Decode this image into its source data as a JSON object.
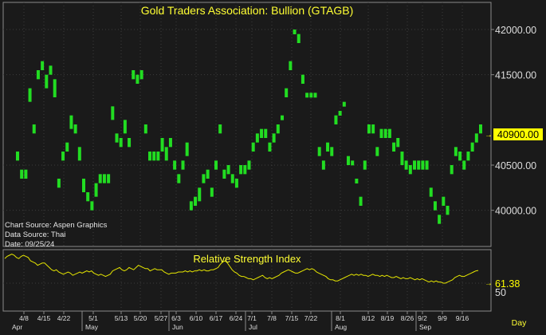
{
  "colors": {
    "background": "#1a1a1a",
    "panel_border": "#8a8a8a",
    "grid": "#3c3c3c",
    "bar": "#22dd22",
    "rsi_line": "#e6e600",
    "title_text": "#ffff33",
    "price_axis_text": "#dddddd",
    "price_tag_bg": "#ffff00",
    "price_tag_text": "#000000",
    "source_text": "#e6e6e6"
  },
  "price_panel": {
    "title": "Gold Traders Association: Bullion (GTAGB)",
    "last_price_label": "40900.00",
    "source_lines": [
      "Chart Source: Aspen Graphics",
      "Data Source: Thai",
      "Date: 09/25/24"
    ]
  },
  "rsi_panel": {
    "title": "Relative Strength Index",
    "last_value_label": "61.38",
    "level_label": "50"
  },
  "x_axis": {
    "day_ticks": [
      "4/8",
      "4/15",
      "4/22",
      "5/1",
      "5/13",
      "5/20",
      "5/27",
      "6/3",
      "6/10",
      "6/17",
      "6/24",
      "7/1",
      "7/8",
      "7/15",
      "7/22",
      "8/1",
      "8/12",
      "8/19",
      "8/26",
      "9/2",
      "9/9",
      "9/16"
    ],
    "month_labels": [
      "Apr",
      "May",
      "Jun",
      "Jul",
      "Aug",
      "Sep"
    ],
    "period_label": "Day"
  },
  "chart_data": [
    {
      "type": "bar",
      "title": "Gold Traders Association: Bullion (GTAGB)",
      "xlabel": "",
      "ylabel": "",
      "ylim": [
        39600,
        42300
      ],
      "yticks": [
        40000,
        40500,
        40900,
        41500,
        42000
      ],
      "ytick_labels": [
        "40000.00",
        "40500.00",
        "40900.00",
        "41500.00",
        "42000.00"
      ],
      "grid": true,
      "bar_style": "high-low range bars",
      "last_value": 40900.0,
      "series": [
        {
          "values": [
            [
              40550,
              40650
            ],
            [
              40350,
              40450
            ],
            [
              40350,
              40450
            ],
            [
              41200,
              41350
            ],
            [
              40850,
              40950
            ],
            [
              41450,
              41550
            ],
            [
              41550,
              41650
            ],
            [
              41350,
              41500
            ],
            [
              41500,
              41600
            ],
            [
              41250,
              41450
            ],
            [
              40250,
              40350
            ],
            [
              40550,
              40650
            ],
            [
              40650,
              40750
            ],
            [
              40900,
              41050
            ],
            [
              40850,
              40950
            ],
            [
              40550,
              40700
            ],
            [
              40200,
              40350
            ],
            [
              40100,
              40200
            ],
            [
              40000,
              40100
            ],
            [
              40150,
              40300
            ],
            [
              40300,
              40400
            ],
            [
              40300,
              40400
            ],
            [
              40300,
              40400
            ],
            [
              41000,
              41150
            ],
            [
              40750,
              40850
            ],
            [
              40700,
              40800
            ],
            [
              40850,
              41000
            ],
            [
              40700,
              40800
            ],
            [
              41450,
              41550
            ],
            [
              41400,
              41500
            ],
            [
              41450,
              41550
            ],
            [
              40850,
              40950
            ],
            [
              40550,
              40650
            ],
            [
              40550,
              40650
            ],
            [
              40550,
              40650
            ],
            [
              40650,
              40800
            ],
            [
              40550,
              40700
            ],
            [
              40700,
              40800
            ],
            [
              40450,
              40550
            ],
            [
              40300,
              40400
            ],
            [
              40450,
              40550
            ],
            [
              40600,
              40750
            ],
            [
              40000,
              40100
            ],
            [
              40050,
              40150
            ],
            [
              40100,
              40250
            ],
            [
              40300,
              40400
            ],
            [
              40350,
              40450
            ],
            [
              40150,
              40250
            ],
            [
              40450,
              40550
            ],
            [
              40850,
              40950
            ],
            [
              40350,
              40450
            ],
            [
              40400,
              40500
            ],
            [
              40300,
              40400
            ],
            [
              40250,
              40350
            ],
            [
              40400,
              40500
            ],
            [
              40400,
              40500
            ],
            [
              40450,
              40550
            ],
            [
              40650,
              40750
            ],
            [
              40750,
              40850
            ],
            [
              40800,
              40900
            ],
            [
              40800,
              40900
            ],
            [
              40650,
              40750
            ],
            [
              40750,
              40850
            ],
            [
              40850,
              40950
            ],
            [
              41000,
              41050
            ],
            [
              41250,
              41350
            ],
            [
              41550,
              41650
            ],
            [
              41950,
              42000
            ],
            [
              41850,
              41950
            ],
            [
              41400,
              41500
            ],
            [
              41250,
              41300
            ],
            [
              41250,
              41300
            ],
            [
              41250,
              41300
            ],
            [
              40600,
              40700
            ],
            [
              40450,
              40550
            ],
            [
              40650,
              40750
            ],
            [
              40600,
              40700
            ],
            [
              40950,
              41050
            ],
            [
              41050,
              41100
            ],
            [
              41150,
              41200
            ],
            [
              40500,
              40600
            ],
            [
              40500,
              40550
            ],
            [
              40300,
              40350
            ],
            [
              40050,
              40150
            ],
            [
              40450,
              40550
            ],
            [
              40850,
              40950
            ],
            [
              40850,
              40950
            ],
            [
              40600,
              40700
            ],
            [
              40800,
              40900
            ],
            [
              40800,
              40900
            ],
            [
              40800,
              40900
            ],
            [
              40650,
              40750
            ],
            [
              40700,
              40800
            ],
            [
              40500,
              40650
            ],
            [
              40450,
              40550
            ],
            [
              40400,
              40500
            ],
            [
              40450,
              40550
            ],
            [
              40450,
              40550
            ],
            [
              40450,
              40550
            ],
            [
              40450,
              40550
            ],
            [
              40150,
              40250
            ],
            [
              40000,
              40100
            ],
            [
              39850,
              39950
            ],
            [
              40050,
              40150
            ],
            [
              39950,
              40050
            ],
            [
              40400,
              40500
            ],
            [
              40600,
              40700
            ],
            [
              40550,
              40650
            ],
            [
              40450,
              40550
            ],
            [
              40550,
              40650
            ],
            [
              40650,
              40750
            ],
            [
              40750,
              40850
            ],
            [
              40850,
              40950
            ]
          ]
        }
      ]
    },
    {
      "type": "line",
      "title": "Relative Strength Index",
      "xlabel": "",
      "ylabel": "",
      "ylim": [
        25,
        80
      ],
      "yticks": [
        50
      ],
      "ytick_labels": [
        "50"
      ],
      "grid": true,
      "last_value": 61.38,
      "series": [
        {
          "name": "Relative Strength Index",
          "values": [
            72,
            74,
            75,
            76,
            75,
            73,
            72,
            74,
            75,
            74,
            73,
            70,
            69,
            68,
            66,
            67,
            68,
            68,
            66,
            64,
            62,
            61,
            62,
            60,
            59,
            58,
            59,
            60,
            59,
            57,
            58,
            59,
            60,
            59,
            60,
            61,
            60,
            61,
            59,
            58,
            57,
            58,
            57,
            56,
            57,
            58,
            61,
            62,
            63,
            64,
            62,
            61,
            62,
            64,
            63,
            62,
            64,
            66,
            65,
            64,
            63,
            63,
            61,
            62,
            63,
            62,
            62,
            62,
            60,
            59,
            58,
            59,
            59,
            59,
            60,
            60,
            60,
            61,
            60,
            61,
            60,
            61,
            61,
            62,
            61,
            62,
            61,
            61,
            62,
            62,
            63,
            64,
            67,
            69,
            70,
            68,
            65,
            62,
            60,
            59,
            57,
            56,
            56,
            55,
            54,
            54,
            53,
            54,
            55,
            56,
            57,
            55,
            54,
            55,
            54,
            55,
            56,
            57,
            59,
            60,
            61,
            62,
            61,
            60,
            59,
            59,
            60,
            61,
            62,
            63,
            62,
            63,
            62,
            60,
            59,
            58,
            57,
            56,
            54,
            53,
            53,
            52,
            52,
            53,
            54,
            55,
            56,
            57,
            58,
            57,
            58,
            57,
            58,
            57,
            57,
            56,
            57,
            58,
            57,
            57,
            56,
            57,
            56,
            57,
            56,
            55,
            55,
            56,
            55,
            54,
            55,
            54,
            54,
            55,
            54,
            53,
            54,
            53,
            54,
            53,
            52,
            51,
            52,
            51,
            52,
            51,
            51,
            50,
            50,
            51,
            52,
            53,
            55,
            56,
            57,
            56,
            56,
            57,
            58,
            59,
            60,
            61,
            61.38
          ]
        }
      ]
    }
  ]
}
